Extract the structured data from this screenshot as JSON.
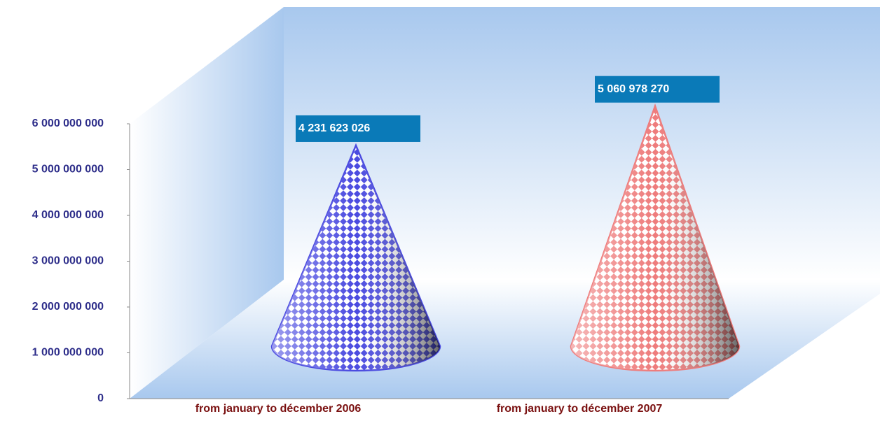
{
  "chart_data": {
    "type": "cone",
    "categories": [
      "from january to décember 2006",
      "from january to décember 2007"
    ],
    "values": [
      4231623026,
      5060978270
    ],
    "value_labels": [
      "4 231 623 026",
      "5 060 978 270"
    ],
    "colors": [
      "#4a4ae0",
      "#ee7c7c"
    ],
    "ylim": [
      0,
      6000000000
    ],
    "yticks": [
      0,
      {
        "value": 1000000000,
        "label": "1 000 000 000"
      },
      {
        "value": 2000000000,
        "label": "2 000 000 000"
      },
      {
        "value": 3000000000,
        "label": "3 000 000 000"
      },
      {
        "value": 4000000000,
        "label": "4 000 000 000"
      },
      {
        "value": 5000000000,
        "label": "5 000 000 000"
      },
      {
        "value": 6000000000,
        "label": "6 000 000 000"
      }
    ]
  }
}
